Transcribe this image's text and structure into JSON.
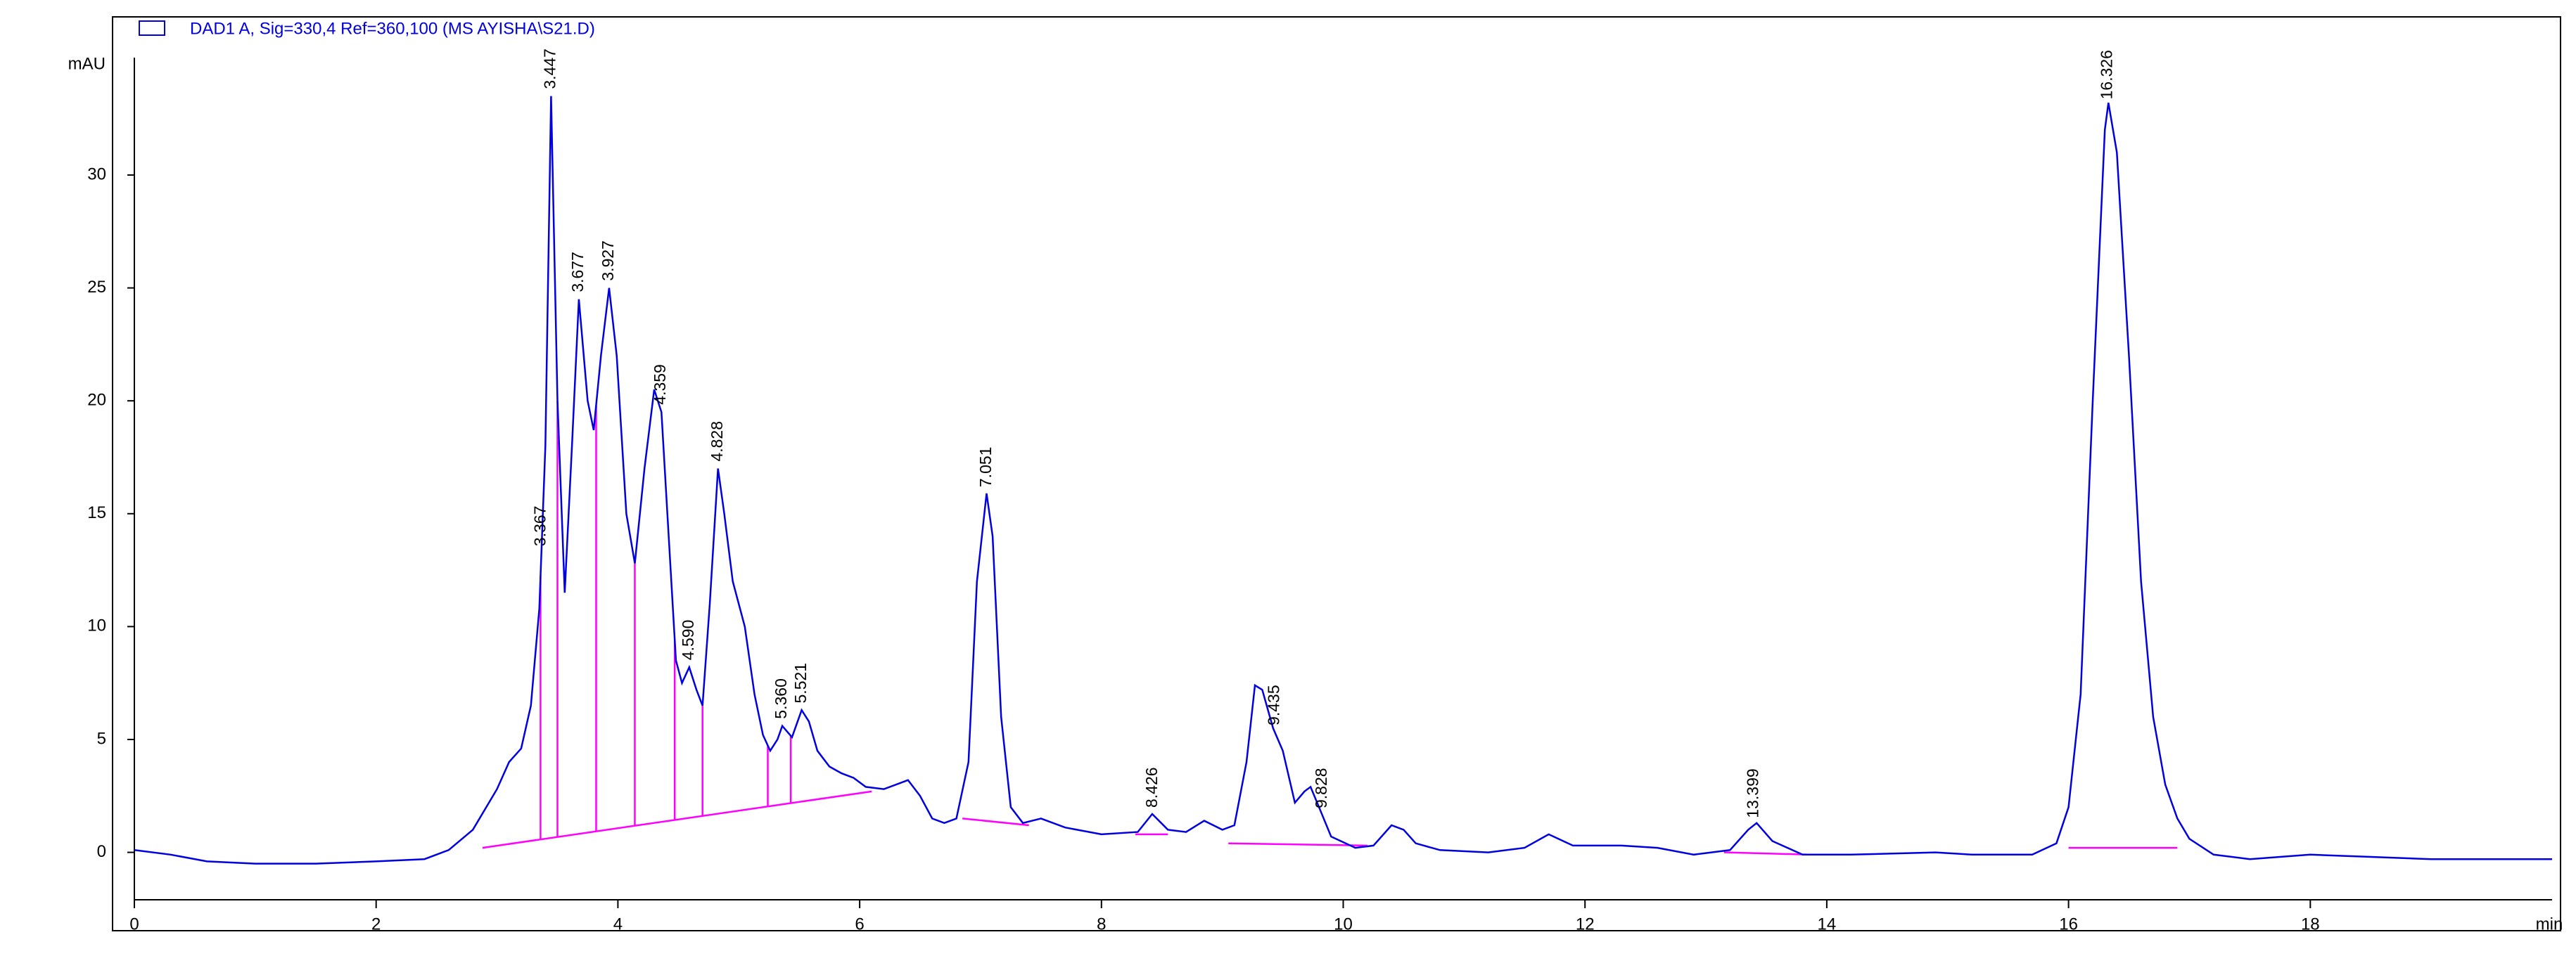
{
  "chart_data": {
    "type": "line",
    "ylabel": "mAU",
    "xlabel": "min",
    "xlim": [
      0,
      20
    ],
    "ylim": [
      -2.1,
      35.2
    ],
    "xticks": [
      0,
      2,
      4,
      6,
      8,
      10,
      12,
      14,
      16,
      18
    ],
    "yticks": [
      0,
      5,
      10,
      15,
      20,
      25,
      30
    ],
    "x": [
      0,
      0.3,
      0.6,
      1.0,
      1.5,
      2.0,
      2.4,
      2.6,
      2.8,
      3.0,
      3.1,
      3.2,
      3.28,
      3.35,
      3.4,
      3.447,
      3.5,
      3.56,
      3.62,
      3.677,
      3.75,
      3.8,
      3.86,
      3.927,
      3.99,
      4.07,
      4.14,
      4.22,
      4.3,
      4.36,
      4.42,
      4.48,
      4.53,
      4.59,
      4.65,
      4.7,
      4.76,
      4.828,
      4.88,
      4.95,
      5.05,
      5.13,
      5.2,
      5.26,
      5.32,
      5.36,
      5.44,
      5.52,
      5.58,
      5.65,
      5.75,
      5.85,
      5.95,
      6.05,
      6.2,
      6.4,
      6.5,
      6.6,
      6.7,
      6.8,
      6.9,
      6.97,
      7.05,
      7.1,
      7.17,
      7.25,
      7.35,
      7.5,
      7.7,
      8.0,
      8.3,
      8.42,
      8.55,
      8.7,
      8.85,
      9.0,
      9.1,
      9.2,
      9.27,
      9.33,
      9.42,
      9.5,
      9.6,
      9.68,
      9.73,
      9.8,
      9.9,
      10.1,
      10.25,
      10.4,
      10.5,
      10.6,
      10.8,
      11.2,
      11.5,
      11.7,
      11.9,
      12.3,
      12.6,
      12.9,
      13.2,
      13.35,
      13.42,
      13.55,
      13.8,
      14.2,
      14.9,
      15.2,
      15.7,
      15.9,
      16.0,
      16.1,
      16.2,
      16.3,
      16.33,
      16.4,
      16.5,
      16.6,
      16.7,
      16.8,
      16.9,
      17.0,
      17.2,
      17.5,
      18.0,
      18.5,
      19.0,
      20.0
    ],
    "series": [
      {
        "name": "DAD1 A, Sig=330,4 Ref=360,100 (MS AYISHA\\S21.D)",
        "color": "#0000e0",
        "values": [
          0.1,
          -0.1,
          -0.4,
          -0.5,
          -0.5,
          -0.4,
          -0.3,
          0.1,
          1.0,
          2.8,
          4.0,
          4.6,
          6.5,
          10.8,
          18,
          33.5,
          20,
          11.5,
          18,
          24.5,
          20,
          18.7,
          22,
          25,
          22,
          15,
          12.8,
          17,
          20.5,
          19.5,
          14,
          8.5,
          7.5,
          8.2,
          7.2,
          6.5,
          11,
          17,
          15,
          12,
          10,
          7,
          5.2,
          4.5,
          5.0,
          5.6,
          5.1,
          6.3,
          5.8,
          4.5,
          3.8,
          3.5,
          3.3,
          2.9,
          2.8,
          3.2,
          2.5,
          1.5,
          1.3,
          1.5,
          4,
          12,
          15.9,
          14,
          6,
          2,
          1.3,
          1.5,
          1.1,
          0.8,
          0.9,
          1.7,
          1.0,
          0.9,
          1.4,
          1.0,
          1.2,
          4,
          7.4,
          7.2,
          5.5,
          4.5,
          2.2,
          2.7,
          2.9,
          2.0,
          0.7,
          0.2,
          0.3,
          1.2,
          1.0,
          0.4,
          0.1,
          0.0,
          0.2,
          0.8,
          0.3,
          0.3,
          0.2,
          -0.1,
          0.1,
          1.0,
          1.3,
          0.5,
          -0.1,
          -0.1,
          0.0,
          -0.1,
          -0.1,
          0.4,
          2,
          7,
          20,
          32,
          33.2,
          31,
          22,
          12,
          6,
          3,
          1.5,
          0.6,
          -0.1,
          -0.3,
          -0.1,
          -0.2,
          -0.3,
          -0.3
        ]
      }
    ],
    "peaks": [
      3.367,
      3.447,
      3.677,
      3.927,
      4.359,
      4.59,
      4.828,
      5.36,
      5.521,
      7.051,
      8.426,
      9.435,
      9.828,
      13.399,
      16.326
    ],
    "peak_labels": [
      "3.367",
      "3.447",
      "3.677",
      "3.927",
      "4.359",
      "4.590",
      "4.828",
      "5.360",
      "5.521",
      "7.051",
      "8.426",
      "9.435",
      "9.828",
      "13.399",
      "16.326"
    ],
    "baseline_color": "#ff00ff",
    "baselines": [
      {
        "x": [
          2.88,
          6.1
        ],
        "y": [
          0.2,
          2.7
        ]
      },
      {
        "x": [
          6.85,
          7.4
        ],
        "y": [
          1.5,
          1.2
        ]
      },
      {
        "x": [
          8.28,
          8.55
        ],
        "y": [
          0.8,
          0.8
        ]
      },
      {
        "x": [
          9.05,
          10.2
        ],
        "y": [
          0.4,
          0.3
        ]
      },
      {
        "x": [
          13.15,
          13.85
        ],
        "y": [
          0.0,
          -0.1
        ]
      },
      {
        "x": [
          16.0,
          16.9
        ],
        "y": [
          0.2,
          0.2
        ]
      }
    ],
    "drop_lines": [
      3.36,
      3.5,
      3.82,
      4.14,
      4.47,
      4.7,
      5.24,
      5.43
    ]
  }
}
